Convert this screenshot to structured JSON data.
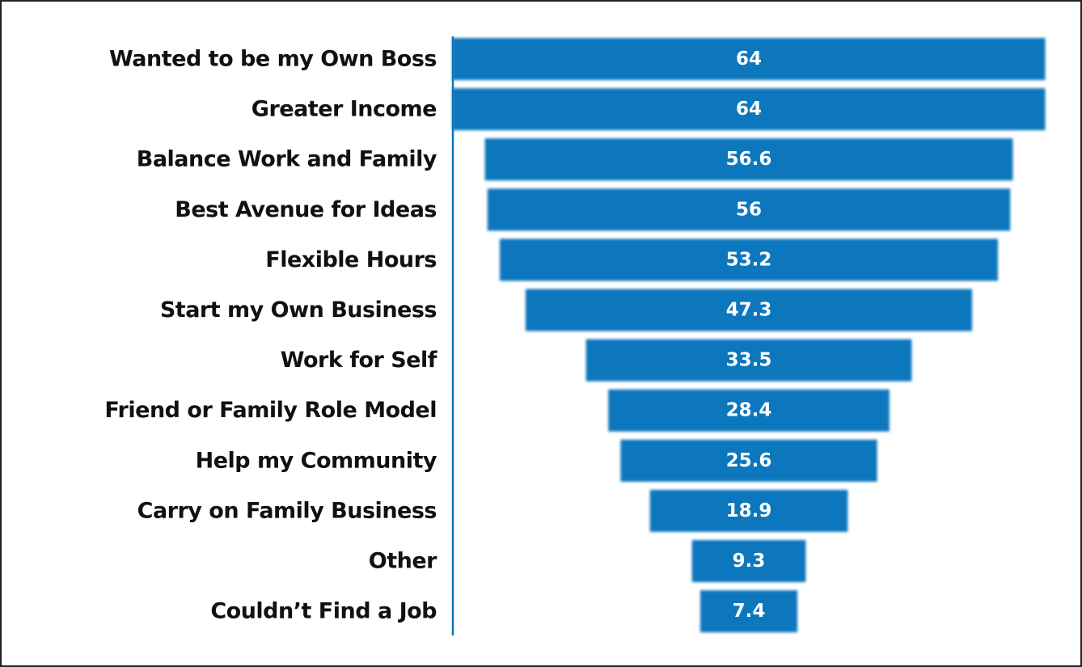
{
  "chart_data": {
    "type": "funnel",
    "categories": [
      "Wanted to be my Own Boss",
      "Greater Income",
      "Balance Work and Family",
      "Best Avenue for Ideas",
      "Flexible Hours",
      "Start my Own Business",
      "Work for Self",
      "Friend or Family Role Model",
      "Help my Community",
      "Carry on Family Business",
      "Other",
      "Couldn’t Find a Job"
    ],
    "values": [
      64,
      64,
      56.6,
      56,
      53.2,
      47.3,
      33.5,
      28.4,
      25.6,
      18.9,
      9.3,
      7.4
    ],
    "color": "#0a77bd"
  }
}
